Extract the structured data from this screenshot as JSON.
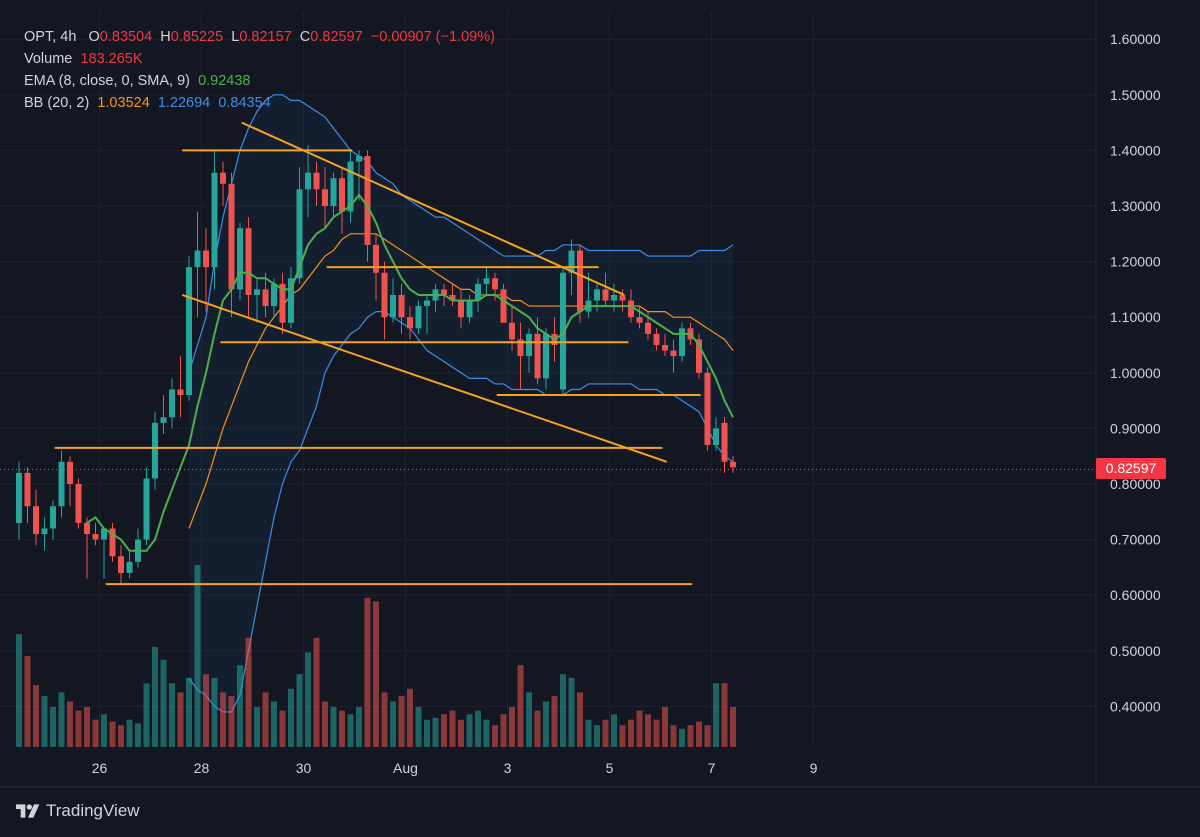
{
  "legend": {
    "symbol": "OPT",
    "interval": "4h",
    "o_label": "O",
    "open": "0.83504",
    "h_label": "H",
    "high": "0.85225",
    "l_label": "L",
    "low": "0.82157",
    "c_label": "C",
    "close": "0.82597",
    "change": "−0.00907 (−1.09%)",
    "volume_label": "Volume",
    "volume": "183.265K",
    "ema_label": "EMA (8, close, 0, SMA, 9)",
    "ema_value": "0.92438",
    "bb_label": "BB (20, 2)",
    "bb_basis": "1.03524",
    "bb_upper": "1.22694",
    "bb_lower": "0.84354"
  },
  "last_price": "0.82597",
  "brand": "TradingView",
  "colors": {
    "background": "#131722",
    "grid": "#1e222d",
    "text": "#d1d4dc",
    "up": "#26a69a",
    "down": "#ef5350",
    "ema": "#4caf50",
    "bb_basis": "#f7931a",
    "bb_band": "#3d8ee6",
    "drawing": "#f7a21b"
  },
  "chart_data": {
    "type": "candlestick",
    "title": "OPT, 4h",
    "ylim": [
      0.33,
      1.66
    ],
    "y_ticks": [
      "1.60000",
      "1.50000",
      "1.40000",
      "1.30000",
      "1.20000",
      "1.10000",
      "1.00000",
      "0.90000",
      "0.80000",
      "0.70000",
      "0.60000",
      "0.50000",
      "0.40000"
    ],
    "x_ticks": [
      {
        "label": "26",
        "index": 11
      },
      {
        "label": "28",
        "index": 23
      },
      {
        "label": "30",
        "index": 35
      },
      {
        "label": "Aug",
        "index": 47
      },
      {
        "label": "3",
        "index": 59
      },
      {
        "label": "5",
        "index": 71
      },
      {
        "label": "7",
        "index": 83
      },
      {
        "label": "9",
        "index": 95
      }
    ],
    "candles": [
      [
        0.73,
        0.84,
        0.7,
        0.82
      ],
      [
        0.82,
        0.83,
        0.73,
        0.76
      ],
      [
        0.76,
        0.79,
        0.69,
        0.71
      ],
      [
        0.71,
        0.74,
        0.68,
        0.72
      ],
      [
        0.72,
        0.77,
        0.7,
        0.76
      ],
      [
        0.76,
        0.86,
        0.74,
        0.84
      ],
      [
        0.84,
        0.85,
        0.76,
        0.8
      ],
      [
        0.8,
        0.81,
        0.72,
        0.73
      ],
      [
        0.73,
        0.74,
        0.63,
        0.71
      ],
      [
        0.71,
        0.73,
        0.69,
        0.7
      ],
      [
        0.7,
        0.72,
        0.63,
        0.72
      ],
      [
        0.72,
        0.73,
        0.66,
        0.67
      ],
      [
        0.67,
        0.69,
        0.62,
        0.64
      ],
      [
        0.64,
        0.68,
        0.63,
        0.66
      ],
      [
        0.66,
        0.72,
        0.65,
        0.7
      ],
      [
        0.7,
        0.83,
        0.69,
        0.81
      ],
      [
        0.81,
        0.93,
        0.79,
        0.91
      ],
      [
        0.91,
        0.96,
        0.89,
        0.92
      ],
      [
        0.92,
        0.99,
        0.9,
        0.97
      ],
      [
        0.97,
        1.03,
        0.92,
        0.96
      ],
      [
        0.96,
        1.21,
        0.95,
        1.19
      ],
      [
        1.19,
        1.29,
        1.1,
        1.22
      ],
      [
        1.22,
        1.26,
        1.11,
        1.19
      ],
      [
        1.19,
        1.4,
        1.15,
        1.36
      ],
      [
        1.36,
        1.38,
        1.3,
        1.34
      ],
      [
        1.34,
        1.36,
        1.1,
        1.15
      ],
      [
        1.15,
        1.27,
        1.13,
        1.26
      ],
      [
        1.26,
        1.28,
        1.1,
        1.14
      ],
      [
        1.14,
        1.17,
        1.09,
        1.15
      ],
      [
        1.15,
        1.18,
        1.1,
        1.12
      ],
      [
        1.12,
        1.17,
        1.1,
        1.16
      ],
      [
        1.16,
        1.18,
        1.07,
        1.09
      ],
      [
        1.09,
        1.19,
        1.08,
        1.17
      ],
      [
        1.17,
        1.37,
        1.16,
        1.33
      ],
      [
        1.33,
        1.41,
        1.28,
        1.36
      ],
      [
        1.36,
        1.38,
        1.3,
        1.33
      ],
      [
        1.33,
        1.37,
        1.26,
        1.3
      ],
      [
        1.3,
        1.36,
        1.28,
        1.35
      ],
      [
        1.35,
        1.37,
        1.25,
        1.29
      ],
      [
        1.29,
        1.4,
        1.27,
        1.38
      ],
      [
        1.38,
        1.4,
        1.31,
        1.39
      ],
      [
        1.39,
        1.4,
        1.2,
        1.23
      ],
      [
        1.23,
        1.25,
        1.13,
        1.18
      ],
      [
        1.18,
        1.2,
        1.06,
        1.1
      ],
      [
        1.1,
        1.17,
        1.09,
        1.14
      ],
      [
        1.14,
        1.16,
        1.07,
        1.1
      ],
      [
        1.1,
        1.12,
        1.06,
        1.08
      ],
      [
        1.08,
        1.13,
        1.07,
        1.12
      ],
      [
        1.12,
        1.14,
        1.07,
        1.13
      ],
      [
        1.13,
        1.16,
        1.11,
        1.15
      ],
      [
        1.15,
        1.16,
        1.12,
        1.14
      ],
      [
        1.14,
        1.16,
        1.12,
        1.13
      ],
      [
        1.13,
        1.15,
        1.08,
        1.1
      ],
      [
        1.1,
        1.14,
        1.09,
        1.13
      ],
      [
        1.13,
        1.17,
        1.11,
        1.16
      ],
      [
        1.16,
        1.19,
        1.14,
        1.17
      ],
      [
        1.17,
        1.18,
        1.13,
        1.15
      ],
      [
        1.15,
        1.16,
        1.1,
        1.09
      ],
      [
        1.09,
        1.12,
        1.04,
        1.06
      ],
      [
        1.06,
        1.09,
        0.97,
        1.03
      ],
      [
        1.03,
        1.08,
        1.0,
        1.07
      ],
      [
        1.07,
        1.1,
        0.98,
        0.99
      ],
      [
        0.99,
        1.08,
        0.97,
        1.07
      ],
      [
        1.07,
        1.1,
        1.02,
        1.05
      ],
      [
        0.97,
        1.19,
        0.96,
        1.18
      ],
      [
        1.18,
        1.24,
        1.14,
        1.22
      ],
      [
        1.22,
        1.23,
        1.09,
        1.11
      ],
      [
        1.11,
        1.18,
        1.1,
        1.13
      ],
      [
        1.13,
        1.16,
        1.11,
        1.15
      ],
      [
        1.15,
        1.18,
        1.12,
        1.13
      ],
      [
        1.13,
        1.16,
        1.11,
        1.14
      ],
      [
        1.14,
        1.15,
        1.11,
        1.13
      ],
      [
        1.13,
        1.15,
        1.09,
        1.1
      ],
      [
        1.1,
        1.12,
        1.08,
        1.09
      ],
      [
        1.09,
        1.11,
        1.06,
        1.07
      ],
      [
        1.07,
        1.08,
        1.04,
        1.05
      ],
      [
        1.05,
        1.07,
        1.03,
        1.04
      ],
      [
        1.04,
        1.06,
        1.0,
        1.03
      ],
      [
        1.03,
        1.09,
        1.02,
        1.08
      ],
      [
        1.08,
        1.09,
        1.05,
        1.06
      ],
      [
        1.06,
        1.07,
        0.99,
        1.0
      ],
      [
        1.0,
        1.01,
        0.86,
        0.87
      ],
      [
        0.87,
        0.92,
        0.86,
        0.9
      ],
      [
        0.91,
        0.92,
        0.82,
        0.84
      ],
      [
        0.84,
        0.85,
        0.82,
        0.83
      ]
    ],
    "volumes": [
      0.62,
      0.5,
      0.34,
      0.28,
      0.22,
      0.3,
      0.25,
      0.2,
      0.22,
      0.15,
      0.18,
      0.14,
      0.12,
      0.15,
      0.13,
      0.35,
      0.55,
      0.48,
      0.35,
      0.3,
      0.38,
      1.0,
      0.4,
      0.38,
      0.3,
      0.28,
      0.45,
      0.6,
      0.22,
      0.3,
      0.25,
      0.2,
      0.32,
      0.4,
      0.52,
      0.6,
      0.25,
      0.22,
      0.2,
      0.18,
      0.22,
      0.82,
      0.8,
      0.3,
      0.25,
      0.28,
      0.32,
      0.22,
      0.15,
      0.16,
      0.18,
      0.2,
      0.15,
      0.18,
      0.2,
      0.15,
      0.12,
      0.18,
      0.22,
      0.45,
      0.3,
      0.2,
      0.25,
      0.28,
      0.4,
      0.38,
      0.3,
      0.15,
      0.12,
      0.15,
      0.18,
      0.12,
      0.15,
      0.2,
      0.18,
      0.15,
      0.22,
      0.12,
      0.1,
      0.12,
      0.14,
      0.12,
      0.35,
      0.35,
      0.22
    ],
    "bb_upper": [
      null,
      null,
      null,
      null,
      null,
      null,
      null,
      null,
      null,
      null,
      null,
      null,
      null,
      null,
      null,
      null,
      null,
      null,
      null,
      null,
      1.0,
      1.05,
      1.1,
      1.2,
      1.28,
      1.34,
      1.4,
      1.44,
      1.47,
      1.49,
      1.5,
      1.5,
      1.49,
      1.49,
      1.48,
      1.47,
      1.46,
      1.44,
      1.42,
      1.4,
      1.39,
      1.38,
      1.36,
      1.35,
      1.34,
      1.32,
      1.31,
      1.3,
      1.29,
      1.28,
      1.28,
      1.27,
      1.26,
      1.25,
      1.24,
      1.23,
      1.22,
      1.21,
      1.21,
      1.21,
      1.21,
      1.21,
      1.22,
      1.22,
      1.23,
      1.23,
      1.23,
      1.22,
      1.22,
      1.22,
      1.22,
      1.22,
      1.22,
      1.22,
      1.21,
      1.21,
      1.21,
      1.21,
      1.21,
      1.21,
      1.22,
      1.22,
      1.22,
      1.22,
      1.23
    ],
    "bb_basis": [
      null,
      null,
      null,
      null,
      null,
      null,
      null,
      null,
      null,
      null,
      null,
      null,
      null,
      null,
      null,
      null,
      null,
      null,
      null,
      null,
      0.72,
      0.76,
      0.8,
      0.85,
      0.9,
      0.94,
      0.98,
      1.02,
      1.05,
      1.08,
      1.1,
      1.12,
      1.14,
      1.15,
      1.17,
      1.19,
      1.21,
      1.22,
      1.24,
      1.25,
      1.25,
      1.25,
      1.25,
      1.24,
      1.23,
      1.22,
      1.21,
      1.2,
      1.19,
      1.18,
      1.17,
      1.16,
      1.15,
      1.15,
      1.14,
      1.14,
      1.14,
      1.14,
      1.13,
      1.13,
      1.12,
      1.12,
      1.12,
      1.12,
      1.12,
      1.12,
      1.12,
      1.12,
      1.12,
      1.12,
      1.12,
      1.12,
      1.12,
      1.12,
      1.11,
      1.11,
      1.11,
      1.1,
      1.1,
      1.1,
      1.09,
      1.08,
      1.07,
      1.06,
      1.04
    ],
    "bb_lower": [
      null,
      null,
      null,
      null,
      null,
      null,
      null,
      null,
      null,
      null,
      null,
      null,
      null,
      null,
      null,
      null,
      null,
      null,
      null,
      null,
      0.45,
      0.43,
      0.42,
      0.4,
      0.39,
      0.39,
      0.42,
      0.5,
      0.58,
      0.66,
      0.74,
      0.8,
      0.84,
      0.86,
      0.9,
      0.94,
      1.0,
      1.03,
      1.05,
      1.07,
      1.08,
      1.1,
      1.11,
      1.11,
      1.1,
      1.09,
      1.08,
      1.06,
      1.04,
      1.03,
      1.02,
      1.01,
      1.0,
      0.99,
      0.99,
      0.99,
      0.98,
      0.98,
      0.97,
      0.97,
      0.97,
      0.97,
      0.96,
      0.96,
      0.96,
      0.97,
      0.97,
      0.98,
      0.98,
      0.98,
      0.98,
      0.98,
      0.98,
      0.97,
      0.97,
      0.97,
      0.96,
      0.96,
      0.95,
      0.94,
      0.93,
      0.9,
      0.87,
      0.85,
      0.84
    ],
    "ema": [
      null,
      null,
      null,
      null,
      null,
      null,
      null,
      null,
      0.73,
      0.74,
      0.72,
      0.71,
      0.7,
      0.68,
      0.68,
      0.68,
      0.7,
      0.75,
      0.79,
      0.83,
      0.87,
      0.94,
      1.0,
      1.07,
      1.13,
      1.15,
      1.18,
      1.18,
      1.17,
      1.17,
      1.16,
      1.15,
      1.15,
      1.19,
      1.23,
      1.25,
      1.26,
      1.28,
      1.29,
      1.3,
      1.32,
      1.3,
      1.27,
      1.23,
      1.2,
      1.17,
      1.15,
      1.14,
      1.14,
      1.14,
      1.14,
      1.13,
      1.13,
      1.13,
      1.13,
      1.14,
      1.14,
      1.13,
      1.12,
      1.11,
      1.1,
      1.08,
      1.07,
      1.06,
      1.07,
      1.1,
      1.11,
      1.12,
      1.12,
      1.12,
      1.12,
      1.12,
      1.12,
      1.11,
      1.1,
      1.09,
      1.08,
      1.07,
      1.07,
      1.07,
      1.05,
      1.02,
      0.99,
      0.95,
      0.92
    ],
    "trendlines": [
      {
        "from": [
          26.2,
          1.45
        ],
        "to": [
          71.2,
          1.14
        ]
      },
      {
        "from": [
          19.2,
          1.14
        ],
        "to": [
          76.2,
          0.84
        ]
      },
      {
        "from": [
          19.2,
          1.4
        ],
        "to": [
          39.2,
          1.4
        ]
      },
      {
        "from": [
          36.2,
          1.19
        ],
        "to": [
          68.2,
          1.19
        ]
      },
      {
        "from": [
          23.7,
          1.055
        ],
        "to": [
          71.7,
          1.055
        ]
      },
      {
        "from": [
          56.2,
          0.96
        ],
        "to": [
          80.2,
          0.96
        ]
      },
      {
        "from": [
          4.2,
          0.865
        ],
        "to": [
          75.7,
          0.865
        ]
      },
      {
        "from": [
          10.2,
          0.62
        ],
        "to": [
          79.2,
          0.62
        ]
      }
    ]
  }
}
